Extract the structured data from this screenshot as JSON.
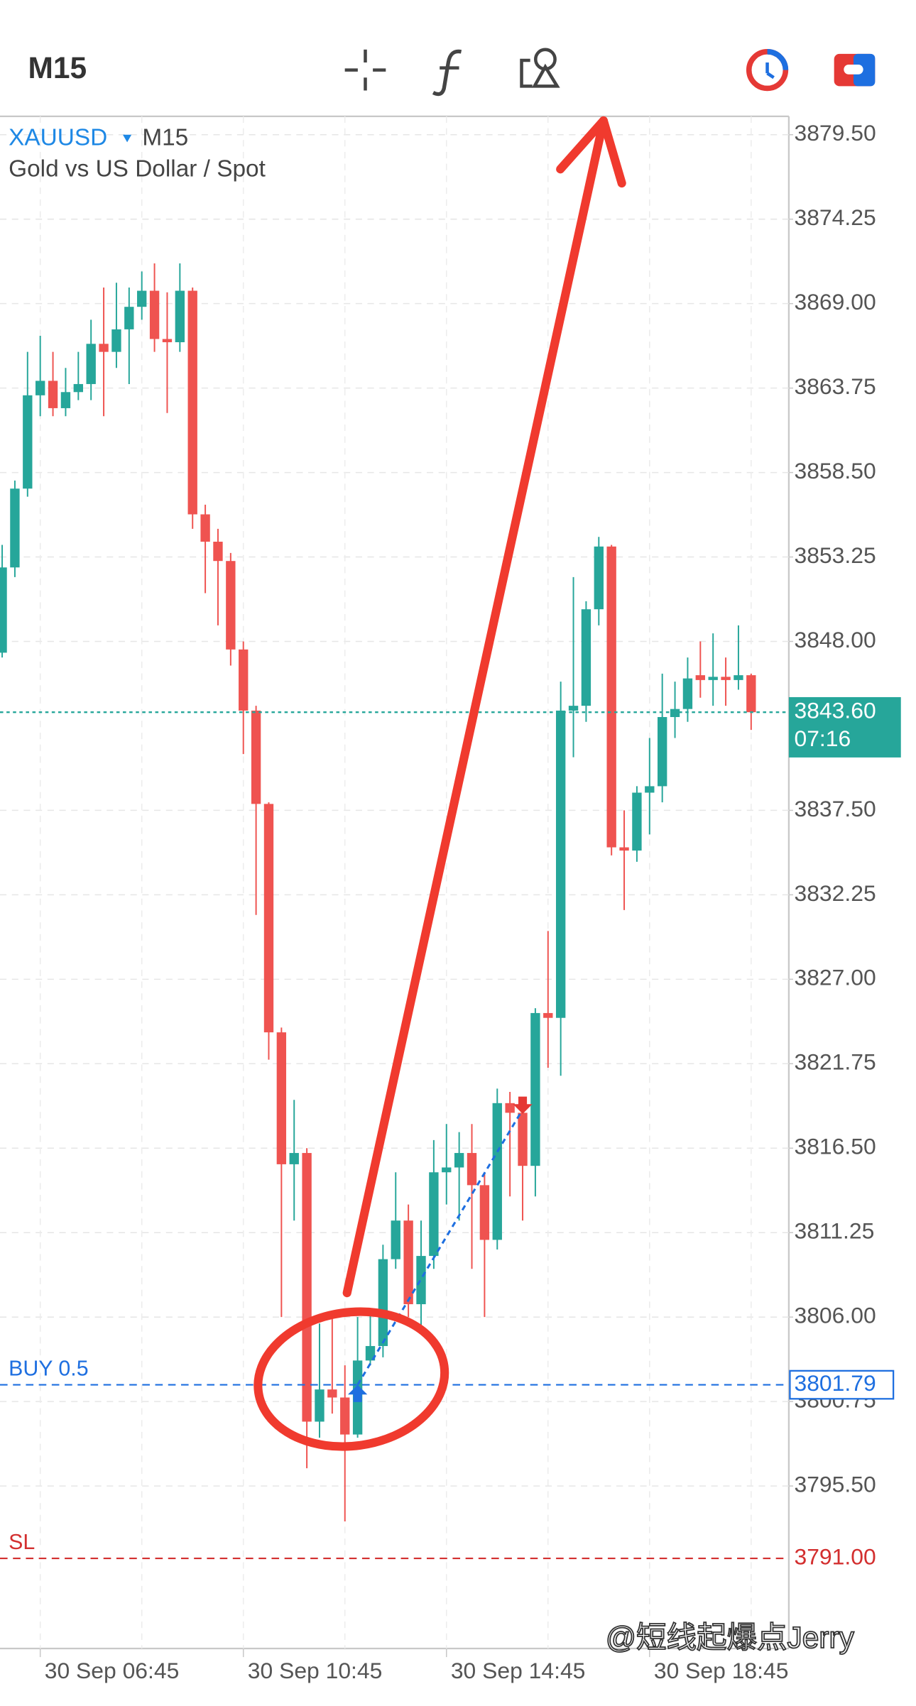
{
  "toolbar": {
    "timeframe": "M15"
  },
  "header": {
    "symbol": "XAUUSD",
    "timeframe": "M15",
    "description": "Gold vs US Dollar / Spot"
  },
  "watermark": "@短线起爆点Jerry",
  "chart_data": {
    "type": "candlestick",
    "categories": [
      null,
      null,
      null,
      "30 Sep 06:45",
      null,
      null,
      null,
      null,
      null,
      null,
      null,
      null,
      null,
      null,
      null,
      null,
      null,
      null,
      null,
      "30 Sep 10:45",
      null,
      null,
      null,
      null,
      null,
      null,
      null,
      null,
      null,
      null,
      null,
      null,
      null,
      null,
      null,
      "30 Sep 14:45",
      null,
      null,
      null,
      null,
      null,
      null,
      null,
      null,
      null,
      null,
      null,
      null,
      null,
      null,
      null,
      "30 Sep 18:45",
      null,
      null,
      null,
      null,
      null,
      null,
      null,
      null
    ],
    "open": [
      3847.3,
      3852.6,
      3857.5,
      3863.3,
      3864.2,
      3862.5,
      3863.5,
      3864.0,
      3866.5,
      3866.0,
      3867.4,
      3868.8,
      3869.8,
      3866.8,
      3866.6,
      3869.8,
      3855.9,
      3854.2,
      3853.0,
      3847.5,
      3843.7,
      3837.9,
      3823.7,
      3815.5,
      3816.2,
      3799.5,
      3801.5,
      3801.0,
      3798.7,
      3803.3,
      3804.2,
      3809.6,
      3812.0,
      3806.8,
      3809.8,
      3815.0,
      3815.3,
      3816.2,
      3814.2,
      3810.8,
      3819.3,
      3818.7,
      3815.4,
      3824.9,
      3824.6,
      3843.7,
      3844.0,
      3850.0,
      3853.9,
      3835.2,
      3835.0,
      3838.6,
      3839.0,
      3843.3,
      3843.8,
      3845.9,
      3845.6,
      3845.8,
      3845.6,
      3845.9
    ],
    "high": [
      3854.0,
      3858.0,
      3866.0,
      3867.0,
      3866.0,
      3865.0,
      3866.0,
      3868.0,
      3870.0,
      3870.3,
      3870.0,
      3871.0,
      3871.5,
      3869.7,
      3871.5,
      3870.0,
      3856.5,
      3855.0,
      3853.5,
      3848.0,
      3844.0,
      3838.0,
      3824.0,
      3819.5,
      3816.5,
      3805.6,
      3806.0,
      3803.0,
      3806.0,
      3806.5,
      3810.5,
      3815.0,
      3813.0,
      3812.0,
      3817.0,
      3818.0,
      3817.5,
      3818.0,
      3815.0,
      3820.2,
      3820.0,
      3819.0,
      3825.2,
      3830.0,
      3845.5,
      3852.0,
      3850.5,
      3854.5,
      3854.0,
      3837.5,
      3839.0,
      3842.0,
      3846.0,
      3845.5,
      3847.0,
      3848.0,
      3848.5,
      3847.0,
      3849.0,
      3846.0
    ],
    "low": [
      3847.0,
      3852.0,
      3857.0,
      3862.0,
      3862.0,
      3862.0,
      3863.0,
      3863.0,
      3862.0,
      3865.0,
      3864.0,
      3868.0,
      3866.0,
      3862.2,
      3866.0,
      3855.0,
      3851.0,
      3849.0,
      3846.5,
      3841.0,
      3831.0,
      3822.0,
      3806.0,
      3812.0,
      3796.6,
      3798.5,
      3800.0,
      3793.3,
      3798.5,
      3803.0,
      3803.5,
      3809.0,
      3806.0,
      3805.5,
      3809.0,
      3813.0,
      3812.0,
      3809.0,
      3806.0,
      3810.2,
      3813.5,
      3812.0,
      3813.5,
      3821.5,
      3821.0,
      3840.8,
      3843.0,
      3849.0,
      3834.7,
      3831.3,
      3834.3,
      3836.0,
      3838.0,
      3842.0,
      3843.0,
      3844.5,
      3844.0,
      3844.0,
      3845.0,
      3842.5
    ],
    "close": [
      3852.6,
      3857.5,
      3863.3,
      3864.2,
      3862.5,
      3863.5,
      3864.0,
      3866.5,
      3866.0,
      3867.4,
      3868.8,
      3869.8,
      3866.8,
      3866.6,
      3869.8,
      3855.9,
      3854.2,
      3853.0,
      3847.5,
      3843.7,
      3837.9,
      3823.7,
      3815.5,
      3816.2,
      3799.5,
      3801.5,
      3801.0,
      3798.7,
      3803.3,
      3804.2,
      3809.6,
      3812.0,
      3806.8,
      3809.8,
      3815.0,
      3815.3,
      3816.2,
      3814.2,
      3810.8,
      3819.3,
      3818.7,
      3815.4,
      3824.9,
      3824.6,
      3843.7,
      3844.0,
      3850.0,
      3853.9,
      3835.2,
      3835.0,
      3838.6,
      3839.0,
      3843.3,
      3843.8,
      3845.7,
      3845.6,
      3845.8,
      3845.6,
      3845.9,
      3843.6
    ],
    "color_up": "#26a69a",
    "color_down": "#ef5350",
    "ylim": [
      3785.4,
      3880.64
    ],
    "yticks": [
      {
        "value": 3879.5,
        "label": "3879.50"
      },
      {
        "value": 3874.25,
        "label": "3874.25"
      },
      {
        "value": 3869,
        "label": "3869.00"
      },
      {
        "value": 3863.75,
        "label": "3863.75"
      },
      {
        "value": 3858.5,
        "label": "3858.50"
      },
      {
        "value": 3853.25,
        "label": "3853.25"
      },
      {
        "value": 3848,
        "label": "3848.00"
      },
      {
        "value": 3837.5,
        "label": "3837.50"
      },
      {
        "value": 3832.25,
        "label": "3832.25"
      },
      {
        "value": 3827,
        "label": "3827.00"
      },
      {
        "value": 3821.75,
        "label": "3821.75"
      },
      {
        "value": 3816.5,
        "label": "3816.50"
      },
      {
        "value": 3811.25,
        "label": "3811.25"
      },
      {
        "value": 3806,
        "label": "3806.00"
      },
      {
        "value": 3800.75,
        "label": "3800.75"
      },
      {
        "value": 3795.5,
        "label": "3795.50"
      }
    ],
    "grid": true,
    "current_price": {
      "value": 3843.6,
      "label": "3843.60",
      "countdown": "07:16",
      "color": "#26a69a"
    },
    "price_lines": [
      {
        "name": "BUY 0.5",
        "value": 3801.79,
        "label": "3801.79",
        "color": "#1e6fe0"
      },
      {
        "name": "SL",
        "value": 3791,
        "label": "3791.00",
        "color": "#d32f2f"
      }
    ],
    "trade": {
      "exit": 3818.9
    }
  }
}
